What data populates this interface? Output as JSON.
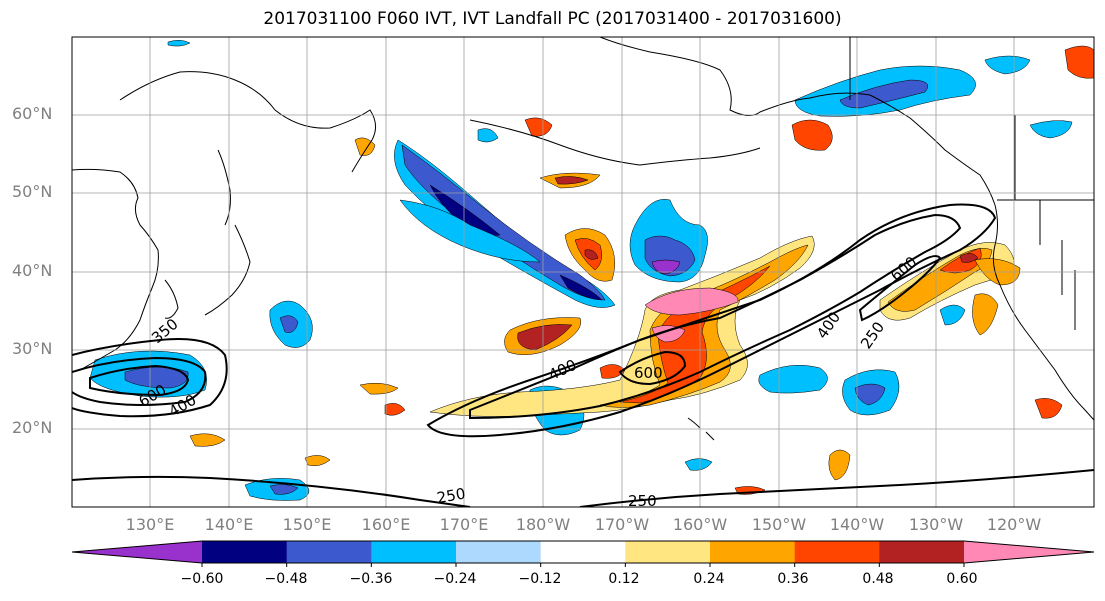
{
  "title": "2017031100 F060 IVT, IVT Landfall PC (2017031400 - 2017031600)",
  "lat_labels": [
    "60°N",
    "50°N",
    "40°N",
    "30°N",
    "20°N"
  ],
  "lon_labels": [
    "130°E",
    "140°E",
    "150°E",
    "160°E",
    "170°E",
    "180°W",
    "170°W",
    "160°W",
    "150°W",
    "140°W",
    "130°W",
    "120°W"
  ],
  "contour_labels": [
    "350",
    "600",
    "400",
    "400",
    "600",
    "250",
    "250",
    "400",
    "250",
    "600"
  ],
  "colorbar": {
    "colors": [
      "#9932cc",
      "#000080",
      "#3c5acd",
      "#00bfff",
      "#add8ff",
      "#ffffff",
      "#ffe680",
      "#ffa500",
      "#ff4500",
      "#b22222",
      "#ff88b4"
    ],
    "labels": [
      "−0.60",
      "−0.48",
      "−0.36",
      "−0.24",
      "−0.12",
      "0.12",
      "0.24",
      "0.36",
      "0.48",
      "0.60"
    ]
  },
  "palette": {
    "ocean": "#ffffff",
    "grid": "#9e9e9e",
    "coast": "#000000",
    "contour": "#000000"
  }
}
